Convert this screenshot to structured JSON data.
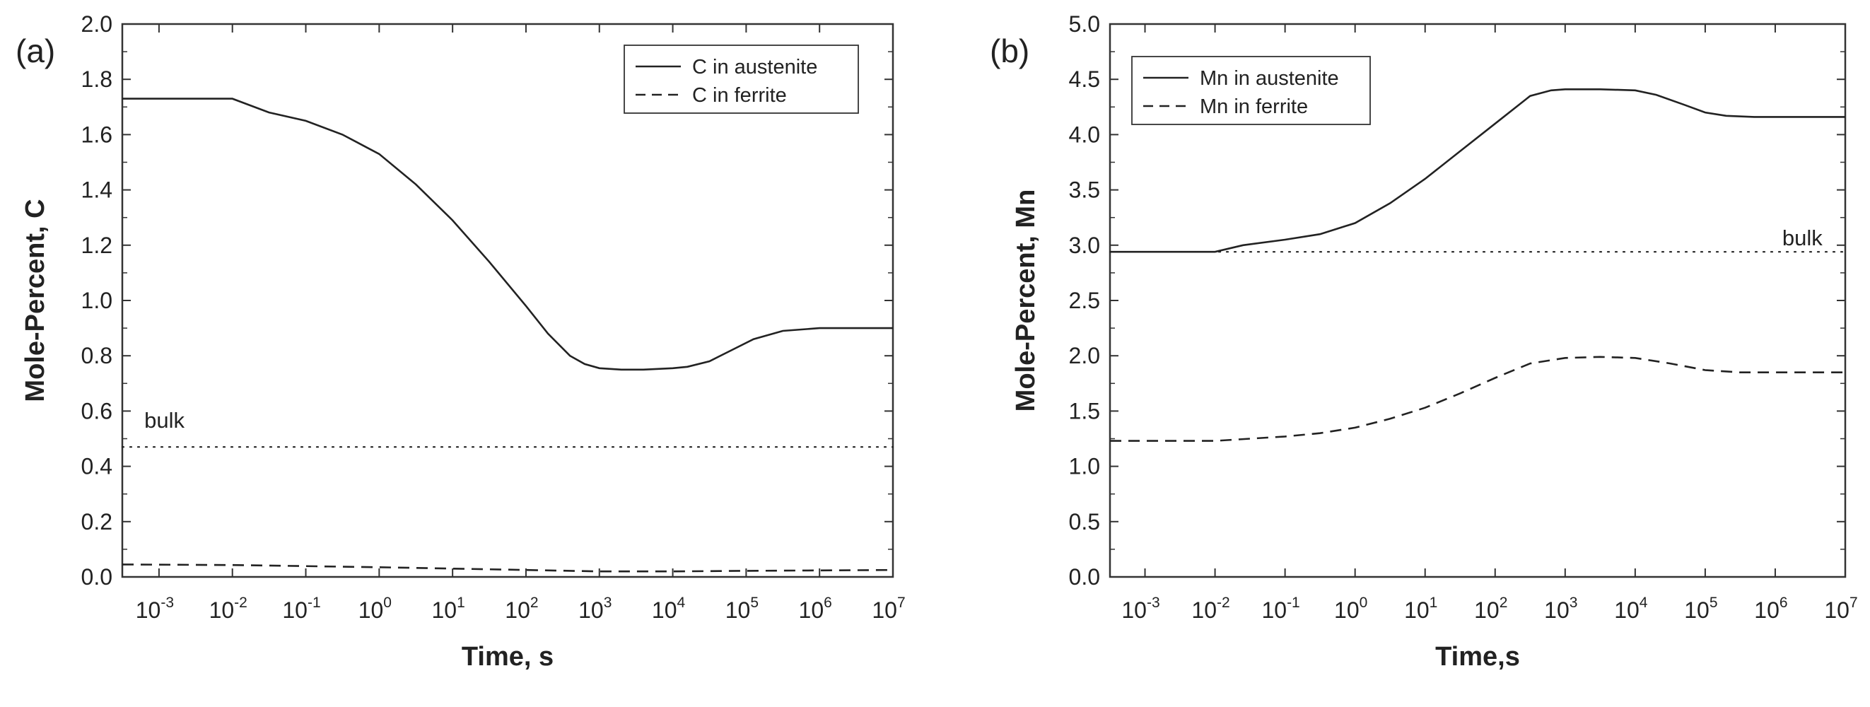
{
  "chart_data": [
    {
      "type": "line",
      "panel_label": "(a)",
      "xlabel": "Time, s",
      "ylabel": "Mole-Percent, C",
      "xscale": "log",
      "xlim_exp": [
        -3.5,
        7
      ],
      "ylim": [
        0,
        2.0
      ],
      "x_ticks": [
        {
          "base": "10",
          "exp": "-3",
          "value": -3
        },
        {
          "base": "10",
          "exp": "-2",
          "value": -2
        },
        {
          "base": "10",
          "exp": "-1",
          "value": -1
        },
        {
          "base": "10",
          "exp": "0",
          "value": 0
        },
        {
          "base": "10",
          "exp": "1",
          "value": 1
        },
        {
          "base": "10",
          "exp": "2",
          "value": 2
        },
        {
          "base": "10",
          "exp": "3",
          "value": 3
        },
        {
          "base": "10",
          "exp": "4",
          "value": 4
        },
        {
          "base": "10",
          "exp": "5",
          "value": 5
        },
        {
          "base": "10",
          "exp": "6",
          "value": 6
        },
        {
          "base": "10",
          "exp": "7",
          "value": 7
        }
      ],
      "y_ticks": [
        "0.0",
        "0.2",
        "0.4",
        "0.6",
        "0.8",
        "1.0",
        "1.2",
        "1.4",
        "1.6",
        "1.8",
        "2.0"
      ],
      "legend_position": "top-right",
      "series": [
        {
          "name": "C in austenite",
          "style": "solid",
          "in_legend": true,
          "log10_x": [
            -3.5,
            -2.0,
            -1.9,
            -1.5,
            -1.0,
            -0.5,
            0,
            0.5,
            1,
            1.5,
            2,
            2.3,
            2.6,
            2.8,
            3.0,
            3.3,
            3.6,
            4.0,
            4.2,
            4.5,
            4.8,
            5.1,
            5.5,
            6.0,
            7.0
          ],
          "y": [
            1.73,
            1.73,
            1.72,
            1.68,
            1.65,
            1.6,
            1.53,
            1.42,
            1.29,
            1.14,
            0.98,
            0.88,
            0.8,
            0.77,
            0.755,
            0.75,
            0.75,
            0.755,
            0.76,
            0.78,
            0.82,
            0.86,
            0.89,
            0.9,
            0.9
          ]
        },
        {
          "name": "C in ferrite",
          "style": "dashed",
          "in_legend": true,
          "log10_x": [
            -3.5,
            -2.0,
            0,
            2,
            3,
            4,
            5,
            7
          ],
          "y": [
            0.045,
            0.043,
            0.035,
            0.025,
            0.02,
            0.02,
            0.022,
            0.025
          ]
        },
        {
          "name": "bulk",
          "style": "dotted",
          "in_legend": false,
          "log10_x": [
            -3.5,
            7.0
          ],
          "y": [
            0.47,
            0.47
          ]
        }
      ],
      "annotations": [
        {
          "text": "bulk",
          "log10_x": -3.2,
          "y": 0.54
        }
      ]
    },
    {
      "type": "line",
      "panel_label": "(b)",
      "xlabel": "Time,s",
      "ylabel": "Mole-Percent, Mn",
      "xscale": "log",
      "xlim_exp": [
        -3.5,
        7
      ],
      "ylim": [
        0,
        5.0
      ],
      "x_ticks": [
        {
          "base": "10",
          "exp": "-3",
          "value": -3
        },
        {
          "base": "10",
          "exp": "-2",
          "value": -2
        },
        {
          "base": "10",
          "exp": "-1",
          "value": -1
        },
        {
          "base": "10",
          "exp": "0",
          "value": 0
        },
        {
          "base": "10",
          "exp": "1",
          "value": 1
        },
        {
          "base": "10",
          "exp": "2",
          "value": 2
        },
        {
          "base": "10",
          "exp": "3",
          "value": 3
        },
        {
          "base": "10",
          "exp": "4",
          "value": 4
        },
        {
          "base": "10",
          "exp": "5",
          "value": 5
        },
        {
          "base": "10",
          "exp": "6",
          "value": 6
        },
        {
          "base": "10",
          "exp": "7",
          "value": 7
        }
      ],
      "y_ticks": [
        "0.0",
        "0.5",
        "1.0",
        "1.5",
        "2.0",
        "2.5",
        "3.0",
        "3.5",
        "4.0",
        "4.5",
        "5.0"
      ],
      "legend_position": "top-left",
      "series": [
        {
          "name": "Mn in austenite",
          "style": "solid",
          "in_legend": true,
          "log10_x": [
            -3.5,
            -2.0,
            -1.6,
            -1.0,
            -0.5,
            0,
            0.5,
            1,
            1.5,
            2,
            2.5,
            2.8,
            3.0,
            3.5,
            4.0,
            4.3,
            4.7,
            5.0,
            5.3,
            5.7,
            6.0,
            7.0
          ],
          "y": [
            2.94,
            2.94,
            3.0,
            3.05,
            3.1,
            3.2,
            3.38,
            3.6,
            3.85,
            4.1,
            4.35,
            4.4,
            4.41,
            4.41,
            4.4,
            4.36,
            4.27,
            4.2,
            4.17,
            4.16,
            4.16,
            4.16
          ]
        },
        {
          "name": "Mn in ferrite",
          "style": "dashed",
          "in_legend": true,
          "log10_x": [
            -3.5,
            -2.0,
            -1.0,
            -0.5,
            0,
            0.5,
            1,
            1.5,
            2,
            2.5,
            3.0,
            3.5,
            4.0,
            4.5,
            5.0,
            5.5,
            6.0,
            7.0
          ],
          "y": [
            1.23,
            1.23,
            1.27,
            1.3,
            1.35,
            1.43,
            1.53,
            1.66,
            1.8,
            1.93,
            1.98,
            1.99,
            1.98,
            1.93,
            1.87,
            1.85,
            1.85,
            1.85
          ]
        },
        {
          "name": "bulk",
          "style": "dotted",
          "in_legend": false,
          "log10_x": [
            -3.5,
            7.0
          ],
          "y": [
            2.94,
            2.94
          ]
        }
      ],
      "annotations": [
        {
          "text": "bulk",
          "log10_x": 6.1,
          "y": 3.0
        }
      ]
    }
  ]
}
